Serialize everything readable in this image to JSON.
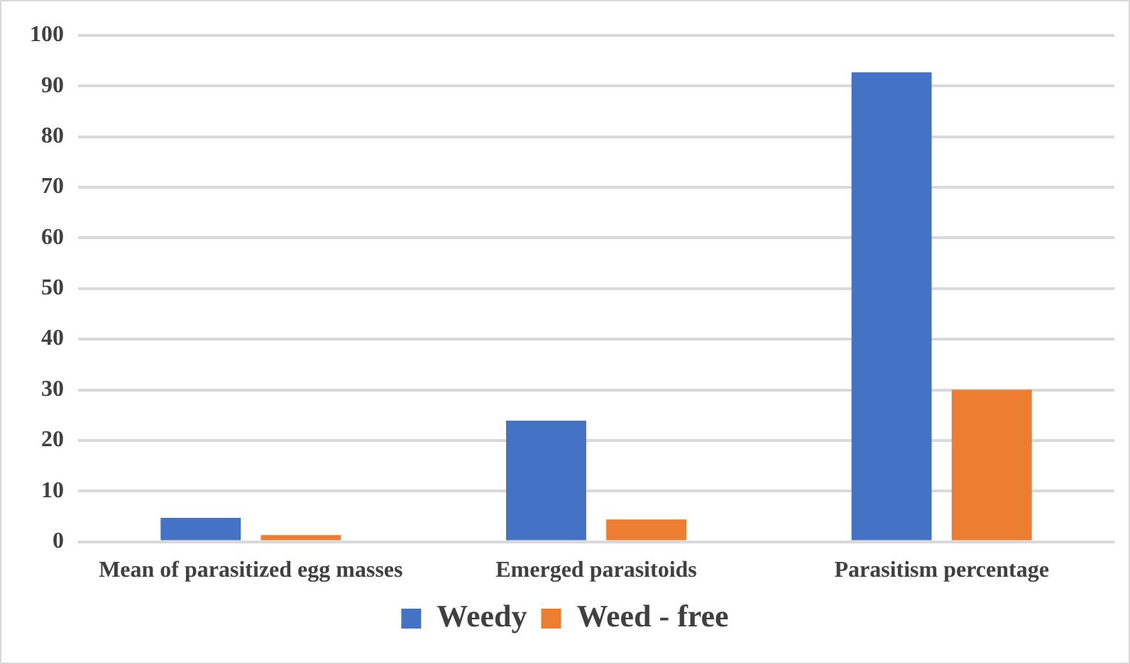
{
  "chart_data": {
    "type": "bar",
    "categories": [
      "Mean of parasitized egg masses",
      "Emerged parasitoids",
      "Parasitism percentage"
    ],
    "series": [
      {
        "name": "Weedy",
        "color": "#4472c4",
        "values": [
          4.7,
          23.9,
          92.7
        ]
      },
      {
        "name": "Weed - free",
        "color": "#ed7d31",
        "values": [
          1.3,
          4.4,
          30
        ]
      }
    ],
    "ylim": [
      0,
      100
    ],
    "yticks": [
      0,
      10,
      20,
      30,
      40,
      50,
      60,
      70,
      80,
      90,
      100
    ],
    "grid": "y",
    "legend": "bottom"
  }
}
